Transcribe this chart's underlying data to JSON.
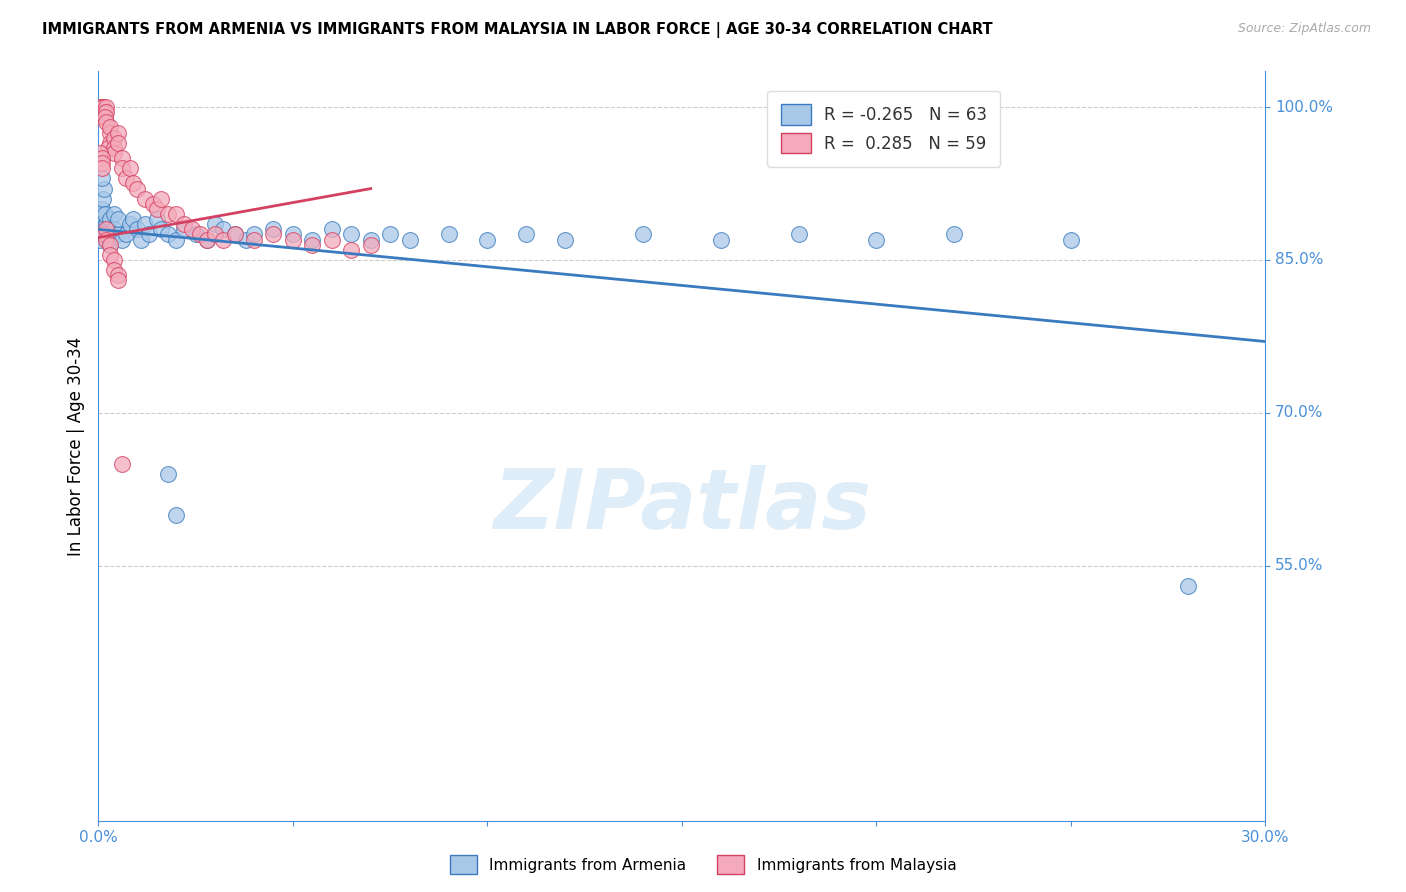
{
  "title": "IMMIGRANTS FROM ARMENIA VS IMMIGRANTS FROM MALAYSIA IN LABOR FORCE | AGE 30-34 CORRELATION CHART",
  "source": "Source: ZipAtlas.com",
  "ylabel": "In Labor Force | Age 30-34",
  "xmin": 0.0,
  "xmax": 0.3,
  "ymin": 0.3,
  "ymax": 1.035,
  "ytick_positions": [
    1.0,
    0.85,
    0.7,
    0.55
  ],
  "ytick_labels": [
    "100.0%",
    "85.0%",
    "70.0%",
    "55.0%"
  ],
  "xtick_positions": [
    0.0,
    0.05,
    0.1,
    0.15,
    0.2,
    0.25,
    0.3
  ],
  "xtick_labels": [
    "0.0%",
    "",
    "",
    "",
    "",
    "",
    "30.0%"
  ],
  "legend_r_armenia": "-0.265",
  "legend_n_armenia": "63",
  "legend_r_malaysia": "0.285",
  "legend_n_malaysia": "59",
  "color_armenia": "#a8c8e8",
  "color_malaysia": "#f4aabb",
  "color_trendline_armenia": "#3a7bbf",
  "color_trendline_malaysia": "#d44060",
  "watermark_text": "ZIPatlas",
  "grid_color": "#cccccc",
  "axis_color": "#4a90d9",
  "background_color": "#ffffff",
  "armenia_x": [
    0.0005,
    0.001,
    0.0015,
    0.001,
    0.002,
    0.001,
    0.0008,
    0.0012,
    0.0015,
    0.001,
    0.002,
    0.0018,
    0.0025,
    0.002,
    0.003,
    0.003,
    0.0028,
    0.003,
    0.004,
    0.004,
    0.005,
    0.005,
    0.006,
    0.007,
    0.008,
    0.009,
    0.01,
    0.011,
    0.012,
    0.013,
    0.015,
    0.016,
    0.018,
    0.02,
    0.022,
    0.025,
    0.028,
    0.03,
    0.032,
    0.035,
    0.038,
    0.04,
    0.045,
    0.05,
    0.055,
    0.06,
    0.065,
    0.07,
    0.075,
    0.08,
    0.09,
    0.1,
    0.11,
    0.12,
    0.14,
    0.16,
    0.18,
    0.2,
    0.22,
    0.25,
    0.018,
    0.02,
    0.28
  ],
  "armenia_y": [
    0.87,
    0.875,
    0.88,
    0.89,
    0.885,
    0.895,
    0.9,
    0.91,
    0.92,
    0.93,
    0.885,
    0.895,
    0.88,
    0.875,
    0.87,
    0.89,
    0.875,
    0.865,
    0.88,
    0.895,
    0.875,
    0.89,
    0.87,
    0.875,
    0.885,
    0.89,
    0.88,
    0.87,
    0.885,
    0.875,
    0.89,
    0.88,
    0.875,
    0.87,
    0.88,
    0.875,
    0.87,
    0.885,
    0.88,
    0.875,
    0.87,
    0.875,
    0.88,
    0.875,
    0.87,
    0.88,
    0.875,
    0.87,
    0.875,
    0.87,
    0.875,
    0.87,
    0.875,
    0.87,
    0.875,
    0.87,
    0.875,
    0.87,
    0.875,
    0.87,
    0.64,
    0.6,
    0.53
  ],
  "malaysia_x": [
    0.0005,
    0.0008,
    0.001,
    0.0012,
    0.0015,
    0.001,
    0.002,
    0.002,
    0.0018,
    0.002,
    0.003,
    0.003,
    0.0025,
    0.003,
    0.004,
    0.004,
    0.004,
    0.005,
    0.005,
    0.006,
    0.006,
    0.007,
    0.008,
    0.009,
    0.01,
    0.012,
    0.014,
    0.015,
    0.016,
    0.018,
    0.02,
    0.022,
    0.024,
    0.026,
    0.028,
    0.03,
    0.032,
    0.035,
    0.04,
    0.045,
    0.05,
    0.055,
    0.06,
    0.065,
    0.07,
    0.0005,
    0.001,
    0.001,
    0.001,
    0.0015,
    0.002,
    0.002,
    0.003,
    0.003,
    0.004,
    0.004,
    0.005,
    0.005,
    0.006
  ],
  "malaysia_y": [
    1.0,
    1.0,
    1.0,
    1.0,
    0.995,
    0.99,
    1.0,
    0.995,
    0.99,
    0.985,
    0.975,
    0.965,
    0.96,
    0.98,
    0.97,
    0.96,
    0.955,
    0.975,
    0.965,
    0.95,
    0.94,
    0.93,
    0.94,
    0.925,
    0.92,
    0.91,
    0.905,
    0.9,
    0.91,
    0.895,
    0.895,
    0.885,
    0.88,
    0.875,
    0.87,
    0.875,
    0.87,
    0.875,
    0.87,
    0.875,
    0.87,
    0.865,
    0.87,
    0.86,
    0.865,
    0.955,
    0.95,
    0.945,
    0.94,
    0.875,
    0.88,
    0.87,
    0.865,
    0.855,
    0.85,
    0.84,
    0.835,
    0.83,
    0.65
  ],
  "trendline_armenia_x0": 0.0,
  "trendline_armenia_x1": 0.3,
  "trendline_armenia_y0": 0.88,
  "trendline_armenia_y1": 0.77,
  "trendline_malaysia_x0": 0.0,
  "trendline_malaysia_x1": 0.07,
  "trendline_malaysia_y0": 0.872,
  "trendline_malaysia_y1": 0.92
}
